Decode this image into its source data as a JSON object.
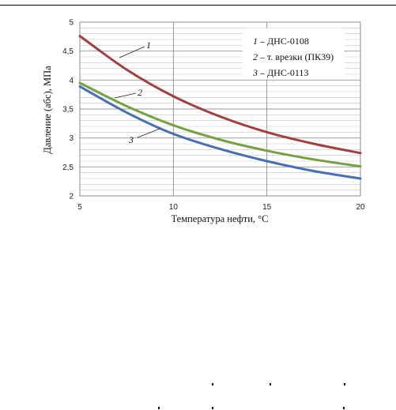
{
  "chart_data": {
    "type": "line",
    "title": "",
    "xlabel": "Температура нефти, °C",
    "ylabel": "Давление (абс), МПа",
    "xlim": [
      5,
      20
    ],
    "ylim": [
      2,
      5
    ],
    "xticks": [
      "5",
      "10",
      "15",
      "20"
    ],
    "yticks": [
      "2",
      "2,5",
      "3",
      "3,5",
      "4",
      "4,5",
      "5"
    ],
    "grid": true,
    "legend_position": "top-right",
    "legend": [
      {
        "num": "1",
        "text": "– ДНС-0108"
      },
      {
        "num": "2",
        "text": "– т. врезки (ПК39)"
      },
      {
        "num": "3",
        "text": "– ДНС-0113"
      }
    ],
    "series": [
      {
        "id": "1",
        "color": "#a04040",
        "x": [
          5,
          7.5,
          10,
          12.5,
          15,
          17.5,
          20
        ],
        "values": [
          4.76,
          4.18,
          3.72,
          3.37,
          3.1,
          2.9,
          2.74
        ]
      },
      {
        "id": "2",
        "color": "#77a043",
        "x": [
          5,
          7.5,
          10,
          12.5,
          15,
          17.5,
          20
        ],
        "values": [
          3.95,
          3.55,
          3.22,
          2.97,
          2.78,
          2.63,
          2.51
        ]
      },
      {
        "id": "3",
        "color": "#4670b0",
        "x": [
          5,
          7.5,
          10,
          12.5,
          15,
          17.5,
          20
        ],
        "values": [
          3.89,
          3.44,
          3.07,
          2.81,
          2.6,
          2.43,
          2.3
        ]
      }
    ]
  }
}
